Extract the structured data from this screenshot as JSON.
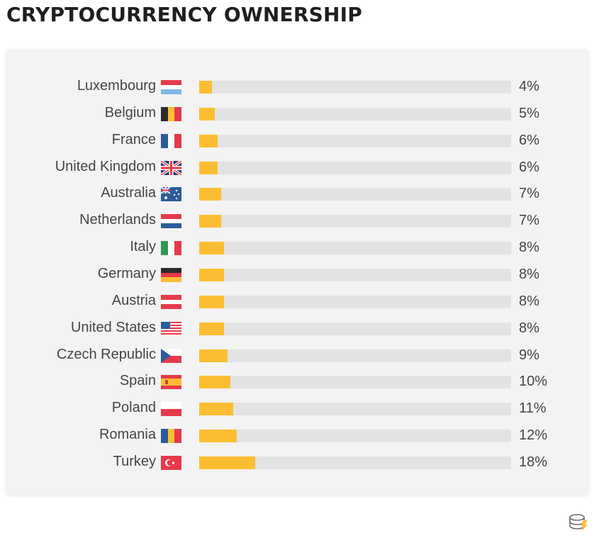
{
  "title": "CRYPTOCURRENCY OWNERSHIP",
  "colors": {
    "bar": "#fbbe33",
    "track": "#e3e3e3",
    "text": "#454545",
    "title": "#1f1f1f"
  },
  "chart_data": {
    "type": "bar",
    "orientation": "horizontal",
    "title": "CRYPTOCURRENCY OWNERSHIP",
    "xlim": [
      0,
      100
    ],
    "categories": [
      "Luxembourg",
      "Belgium",
      "France",
      "United Kingdom",
      "Australia",
      "Netherlands",
      "Italy",
      "Germany",
      "Austria",
      "United States",
      "Czech Republic",
      "Spain",
      "Poland",
      "Romania",
      "Turkey"
    ],
    "values": [
      4,
      5,
      6,
      6,
      7,
      7,
      8,
      8,
      8,
      8,
      9,
      10,
      11,
      12,
      18
    ],
    "value_labels": [
      "4%",
      "5%",
      "6%",
      "6%",
      "7%",
      "7%",
      "8%",
      "8%",
      "8%",
      "8%",
      "9%",
      "10%",
      "11%",
      "12%",
      "18%"
    ],
    "flags": [
      "luxembourg-flag-icon",
      "belgium-flag-icon",
      "france-flag-icon",
      "united-kingdom-flag-icon",
      "australia-flag-icon",
      "netherlands-flag-icon",
      "italy-flag-icon",
      "germany-flag-icon",
      "austria-flag-icon",
      "united-states-flag-icon",
      "czech-republic-flag-icon",
      "spain-flag-icon",
      "poland-flag-icon",
      "romania-flag-icon",
      "turkey-flag-icon"
    ]
  },
  "logo": "coin-stack-logo-icon"
}
